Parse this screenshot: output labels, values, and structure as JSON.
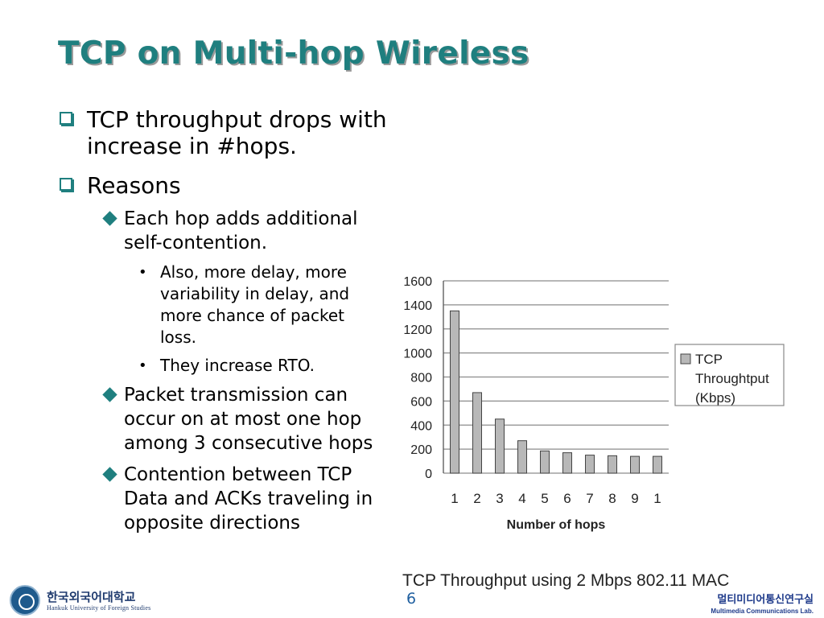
{
  "slide": {
    "title": "TCP on Multi-hop Wireless",
    "bullets": {
      "b1": "TCP throughput drops with increase in #hops.",
      "b2": "Reasons",
      "b2_1": "Each hop adds additional self-contention.",
      "b2_1_1": "Also, more delay, more variability in delay, and more chance of packet loss.",
      "b2_1_2": "They increase RTO.",
      "b2_2": "Packet transmission can occur on at most one hop among 3 consecutive hops",
      "b2_3": "Contention between TCP Data and ACKs traveling in opposite directions"
    },
    "caption": "TCP Throughput using 2 Mbps 802.11 MAC",
    "page_number": "6",
    "logo_left": {
      "korean": "한국외국어대학교",
      "english": "Hankuk University of Foreign Studies"
    },
    "logo_right": {
      "korean": "멀티미디어통신연구실",
      "english": "Multimedia Communications Lab."
    },
    "accent_color": "#1f7f7f"
  },
  "chart_data": {
    "type": "bar",
    "categories": [
      "1",
      "2",
      "3",
      "4",
      "5",
      "6",
      "7",
      "8",
      "9",
      "1"
    ],
    "values": [
      1350,
      670,
      450,
      270,
      185,
      170,
      150,
      145,
      140,
      140
    ],
    "series": [
      {
        "name": "TCP Throughtput (Kbps)",
        "values": [
          1350,
          670,
          450,
          270,
          185,
          170,
          150,
          145,
          140,
          140
        ]
      }
    ],
    "legend_lines": [
      "TCP",
      "Throughtput",
      "(Kbps)"
    ],
    "xlabel": "Number of hops",
    "ylabel": "",
    "ylim": [
      0,
      1600
    ],
    "yticks": [
      "0",
      "200",
      "400",
      "600",
      "800",
      "1000",
      "1200",
      "1400",
      "1600"
    ],
    "grid": true,
    "legend_position": "right",
    "bar_color": "#b8b8b8"
  }
}
